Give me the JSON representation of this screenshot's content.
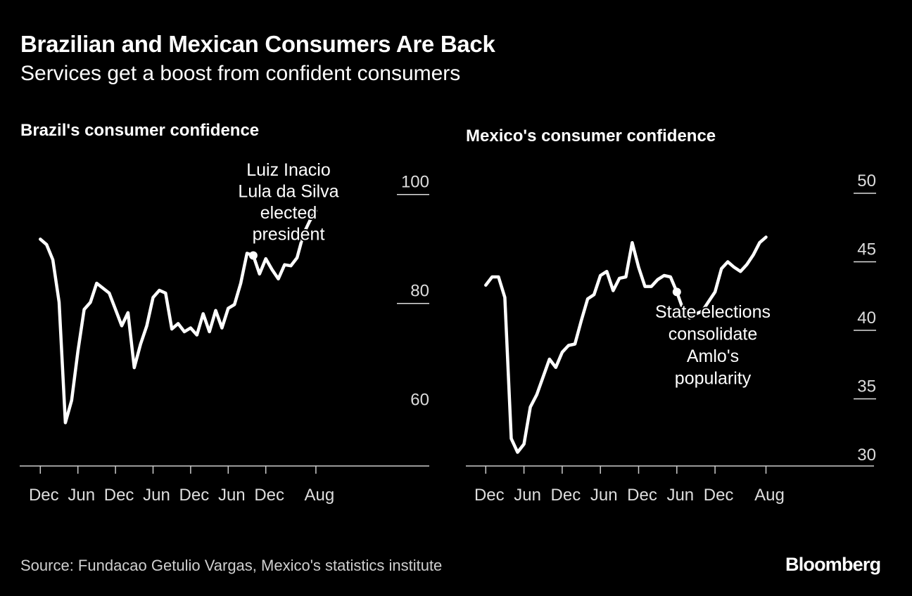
{
  "header": {
    "title": "Brazilian and Mexican Consumers Are Back",
    "subtitle": "Services get a boost from confident consumers"
  },
  "footer": {
    "source": "Source: Fundacao Getulio Vargas, Mexico's statistics institute",
    "logo": "Bloomberg"
  },
  "colors": {
    "background": "#000000",
    "line": "#ffffff",
    "text": "#ffffff",
    "muted": "#cfcfcf"
  },
  "chart_data": [
    {
      "type": "line",
      "title": "Brazil's consumer confidence",
      "x_start": "Dec 2019",
      "x_end": "Aug 2023",
      "x_frequency": "monthly",
      "x_ticks": [
        "Dec",
        "Jun",
        "Dec",
        "Jun",
        "Dec",
        "Jun",
        "Dec",
        "Aug"
      ],
      "y_ticks": [
        100,
        80,
        60
      ],
      "ylim": [
        46,
        104
      ],
      "grid": false,
      "y_axis_side": "right",
      "values": [
        91.8,
        90.8,
        88.0,
        80.2,
        58.1,
        62.2,
        71.2,
        78.9,
        80.2,
        83.7,
        82.8,
        81.9,
        78.9,
        75.9,
        78.3,
        68.2,
        72.5,
        75.9,
        81.1,
        82.4,
        81.9,
        75.3,
        76.3,
        74.8,
        75.5,
        74.2,
        78.1,
        74.8,
        78.7,
        75.5,
        79.1,
        79.8,
        83.7,
        89.2,
        88.8,
        85.4,
        88.2,
        86.2,
        84.5,
        87.1,
        86.9,
        88.4,
        92.7,
        95.1,
        97.0
      ],
      "annotation": {
        "month_index": 34,
        "lines": [
          "Luiz Inacio",
          "Lula da Silva",
          "elected",
          "president"
        ]
      }
    },
    {
      "type": "line",
      "title": "Mexico's consumer confidence",
      "x_start": "Dec 2019",
      "x_end": "Aug 2023",
      "x_frequency": "monthly",
      "x_ticks": [
        "Dec",
        "Jun",
        "Dec",
        "Jun",
        "Dec",
        "Jun",
        "Dec",
        "Aug"
      ],
      "y_ticks": [
        50,
        45,
        40,
        35,
        30
      ],
      "ylim": [
        29.6,
        51
      ],
      "grid": false,
      "y_axis_side": "right",
      "values": [
        43.3,
        43.9,
        43.9,
        42.4,
        32.1,
        31.1,
        31.7,
        34.4,
        35.3,
        36.6,
        37.9,
        37.3,
        38.4,
        38.9,
        39.0,
        40.7,
        42.3,
        42.6,
        44.0,
        44.3,
        42.9,
        43.8,
        43.9,
        46.4,
        44.6,
        43.2,
        43.2,
        43.7,
        44.0,
        43.9,
        42.8,
        41.5,
        40.9,
        41.2,
        41.4,
        42.1,
        42.8,
        44.5,
        45.0,
        44.6,
        44.3,
        44.8,
        45.5,
        46.4,
        46.8
      ],
      "annotation": {
        "month_index": 30,
        "lines": [
          "State elections",
          "consolidate",
          "Amlo's",
          "popularity"
        ]
      }
    }
  ]
}
